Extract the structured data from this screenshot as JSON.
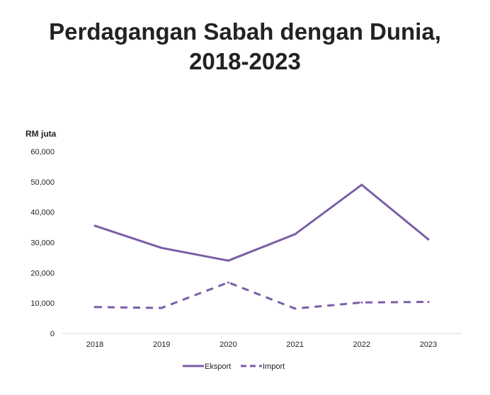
{
  "chart_data": {
    "type": "line",
    "title_lines": [
      "Perdagangan Sabah dengan Dunia,",
      "2018-2023"
    ],
    "ylabel": "RM juta",
    "xlabel": "",
    "categories": [
      "2018",
      "2019",
      "2020",
      "2021",
      "2022",
      "2023"
    ],
    "ylim": [
      0,
      60000
    ],
    "yticks": [
      "0",
      "10,000",
      "20,000",
      "30,000",
      "40,000",
      "50,000",
      "60,000"
    ],
    "grid": false,
    "legend_position": "bottom",
    "series": [
      {
        "name": "Eksport",
        "style": "solid",
        "color": "#7b5ea7",
        "values": [
          35500,
          28200,
          24000,
          32700,
          49000,
          31000
        ]
      },
      {
        "name": "Import",
        "style": "dashed",
        "color": "#7b5ea7",
        "values": [
          8700,
          8400,
          16800,
          8200,
          10200,
          10400
        ]
      }
    ]
  }
}
